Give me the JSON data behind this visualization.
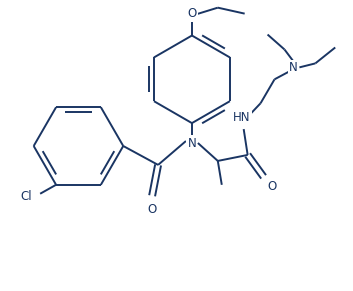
{
  "bg_color": "#ffffff",
  "line_color": "#1a3563",
  "text_color": "#1a3563",
  "figsize": [
    3.53,
    2.91
  ],
  "dpi": 100,
  "bond_lw": 1.4,
  "font_size": 8.5,
  "xlim": [
    0,
    353
  ],
  "ylim": [
    0,
    291
  ]
}
